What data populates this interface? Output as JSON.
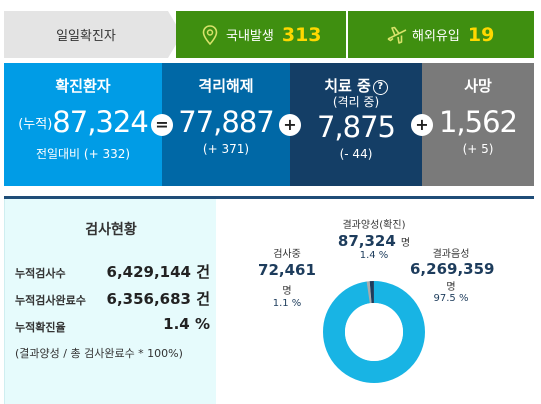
{
  "topbar": {
    "label": "일일확진자",
    "domestic": {
      "label": "국내발생",
      "value": "313",
      "icon": "map-pin-icon"
    },
    "overseas": {
      "label": "해외유입",
      "value": "19",
      "icon": "airplane-icon"
    }
  },
  "stats": {
    "confirmed": {
      "title": "확진환자",
      "prefix": "(누적)",
      "value": "87,324",
      "delta": "전일대비 (+ 332)"
    },
    "released": {
      "title": "격리해제",
      "value": "77,887",
      "delta": "(+ 371)"
    },
    "treatment": {
      "title": "치료 중",
      "help": "?",
      "subtitle": "(격리 중)",
      "value": "7,875",
      "delta": "(- 44)"
    },
    "deaths": {
      "title": "사망",
      "value": "1,562",
      "delta": "(+ 5)"
    },
    "operators": {
      "equals": "=",
      "plus": "+"
    }
  },
  "tests": {
    "title": "검사현황",
    "rows": [
      {
        "label": "누적검사수",
        "value": "6,429,144 건"
      },
      {
        "label": "누적검사완료수",
        "value": "6,356,683 건"
      },
      {
        "label": "누적확진율",
        "value": "1.4 %"
      }
    ],
    "note": "(결과양성 / 총 검사완료수 * 100%)"
  },
  "chart_data": {
    "type": "pie",
    "unit": "명",
    "slices": [
      {
        "label": "검사중",
        "value": 72461,
        "display": "72,461",
        "percent": "1.1 %",
        "color": "#aaaaaa"
      },
      {
        "label": "결과양성(확진)",
        "value": 87324,
        "display": "87,324",
        "percent": "1.4 %",
        "color": "#1d3c5c"
      },
      {
        "label": "결과음성",
        "value": 6269359,
        "display": "6,269,359",
        "percent": "97.5 %",
        "color": "#18b4e4"
      }
    ]
  }
}
